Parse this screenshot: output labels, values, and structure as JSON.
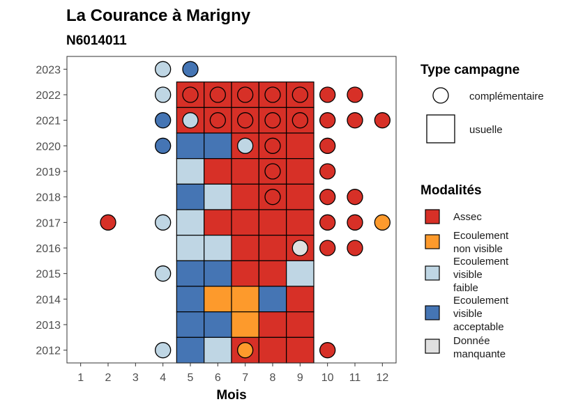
{
  "title": "La Courance à Marigny",
  "subtitle": "N6014011",
  "chart_data": {
    "type": "heatmap",
    "xlabel": "Mois",
    "ylabel": "",
    "x_ticks": [
      "1",
      "2",
      "3",
      "4",
      "5",
      "6",
      "7",
      "8",
      "9",
      "10",
      "11",
      "12"
    ],
    "y_ticks": [
      "2012",
      "2013",
      "2014",
      "2015",
      "2016",
      "2017",
      "2018",
      "2019",
      "2020",
      "2021",
      "2022",
      "2023"
    ],
    "xlim": [
      0.5,
      12.5
    ],
    "ylim": [
      2011.5,
      2023.5
    ],
    "colors": {
      "Assec": "#d73027",
      "Ecoulement non visible": "#fd9a2c",
      "Ecoulement visible faible": "#bfd6e4",
      "Ecoulement visible acceptable": "#4575b4",
      "Donnée manquante": "#e0e0e0"
    },
    "usuelle": [
      {
        "year": 2022,
        "month": 5,
        "mod": "Assec"
      },
      {
        "year": 2022,
        "month": 6,
        "mod": "Assec"
      },
      {
        "year": 2022,
        "month": 7,
        "mod": "Assec"
      },
      {
        "year": 2022,
        "month": 8,
        "mod": "Assec"
      },
      {
        "year": 2022,
        "month": 9,
        "mod": "Assec"
      },
      {
        "year": 2021,
        "month": 5,
        "mod": "Assec"
      },
      {
        "year": 2021,
        "month": 6,
        "mod": "Assec"
      },
      {
        "year": 2021,
        "month": 7,
        "mod": "Assec"
      },
      {
        "year": 2021,
        "month": 8,
        "mod": "Assec"
      },
      {
        "year": 2021,
        "month": 9,
        "mod": "Assec"
      },
      {
        "year": 2020,
        "month": 5,
        "mod": "Ecoulement visible acceptable"
      },
      {
        "year": 2020,
        "month": 6,
        "mod": "Ecoulement visible acceptable"
      },
      {
        "year": 2020,
        "month": 7,
        "mod": "Assec"
      },
      {
        "year": 2020,
        "month": 8,
        "mod": "Assec"
      },
      {
        "year": 2020,
        "month": 9,
        "mod": "Assec"
      },
      {
        "year": 2019,
        "month": 5,
        "mod": "Ecoulement visible faible"
      },
      {
        "year": 2019,
        "month": 6,
        "mod": "Assec"
      },
      {
        "year": 2019,
        "month": 7,
        "mod": "Assec"
      },
      {
        "year": 2019,
        "month": 8,
        "mod": "Assec"
      },
      {
        "year": 2019,
        "month": 9,
        "mod": "Assec"
      },
      {
        "year": 2018,
        "month": 5,
        "mod": "Ecoulement visible acceptable"
      },
      {
        "year": 2018,
        "month": 6,
        "mod": "Ecoulement visible faible"
      },
      {
        "year": 2018,
        "month": 7,
        "mod": "Assec"
      },
      {
        "year": 2018,
        "month": 8,
        "mod": "Assec"
      },
      {
        "year": 2018,
        "month": 9,
        "mod": "Assec"
      },
      {
        "year": 2017,
        "month": 5,
        "mod": "Ecoulement visible faible"
      },
      {
        "year": 2017,
        "month": 6,
        "mod": "Assec"
      },
      {
        "year": 2017,
        "month": 7,
        "mod": "Assec"
      },
      {
        "year": 2017,
        "month": 8,
        "mod": "Assec"
      },
      {
        "year": 2017,
        "month": 9,
        "mod": "Assec"
      },
      {
        "year": 2016,
        "month": 5,
        "mod": "Ecoulement visible faible"
      },
      {
        "year": 2016,
        "month": 6,
        "mod": "Ecoulement visible faible"
      },
      {
        "year": 2016,
        "month": 7,
        "mod": "Assec"
      },
      {
        "year": 2016,
        "month": 8,
        "mod": "Assec"
      },
      {
        "year": 2016,
        "month": 9,
        "mod": "Assec"
      },
      {
        "year": 2015,
        "month": 5,
        "mod": "Ecoulement visible acceptable"
      },
      {
        "year": 2015,
        "month": 6,
        "mod": "Ecoulement visible acceptable"
      },
      {
        "year": 2015,
        "month": 7,
        "mod": "Assec"
      },
      {
        "year": 2015,
        "month": 8,
        "mod": "Assec"
      },
      {
        "year": 2015,
        "month": 9,
        "mod": "Ecoulement visible faible"
      },
      {
        "year": 2014,
        "month": 5,
        "mod": "Ecoulement visible acceptable"
      },
      {
        "year": 2014,
        "month": 6,
        "mod": "Ecoulement non visible"
      },
      {
        "year": 2014,
        "month": 7,
        "mod": "Ecoulement non visible"
      },
      {
        "year": 2014,
        "month": 8,
        "mod": "Ecoulement visible acceptable"
      },
      {
        "year": 2014,
        "month": 9,
        "mod": "Assec"
      },
      {
        "year": 2013,
        "month": 5,
        "mod": "Ecoulement visible acceptable"
      },
      {
        "year": 2013,
        "month": 6,
        "mod": "Ecoulement visible acceptable"
      },
      {
        "year": 2013,
        "month": 7,
        "mod": "Ecoulement non visible"
      },
      {
        "year": 2013,
        "month": 8,
        "mod": "Assec"
      },
      {
        "year": 2013,
        "month": 9,
        "mod": "Assec"
      },
      {
        "year": 2012,
        "month": 5,
        "mod": "Ecoulement visible acceptable"
      },
      {
        "year": 2012,
        "month": 6,
        "mod": "Ecoulement visible faible"
      },
      {
        "year": 2012,
        "month": 7,
        "mod": "Assec"
      },
      {
        "year": 2012,
        "month": 8,
        "mod": "Assec"
      },
      {
        "year": 2012,
        "month": 9,
        "mod": "Assec"
      }
    ],
    "complementaire": [
      {
        "year": 2023,
        "month": 4,
        "mod": "Ecoulement visible faible"
      },
      {
        "year": 2023,
        "month": 5,
        "mod": "Ecoulement visible acceptable"
      },
      {
        "year": 2022,
        "month": 4,
        "mod": "Ecoulement visible faible"
      },
      {
        "year": 2022,
        "month": 5,
        "mod": "Assec"
      },
      {
        "year": 2022,
        "month": 6,
        "mod": "Assec"
      },
      {
        "year": 2022,
        "month": 7,
        "mod": "Assec"
      },
      {
        "year": 2022,
        "month": 8,
        "mod": "Assec"
      },
      {
        "year": 2022,
        "month": 9,
        "mod": "Assec"
      },
      {
        "year": 2022,
        "month": 10,
        "mod": "Assec"
      },
      {
        "year": 2022,
        "month": 11,
        "mod": "Assec"
      },
      {
        "year": 2021,
        "month": 4,
        "mod": "Ecoulement visible acceptable"
      },
      {
        "year": 2021,
        "month": 5,
        "mod": "Ecoulement visible faible"
      },
      {
        "year": 2021,
        "month": 6,
        "mod": "Assec"
      },
      {
        "year": 2021,
        "month": 7,
        "mod": "Assec"
      },
      {
        "year": 2021,
        "month": 8,
        "mod": "Assec"
      },
      {
        "year": 2021,
        "month": 9,
        "mod": "Assec"
      },
      {
        "year": 2021,
        "month": 10,
        "mod": "Assec"
      },
      {
        "year": 2021,
        "month": 11,
        "mod": "Assec"
      },
      {
        "year": 2021,
        "month": 12,
        "mod": "Assec"
      },
      {
        "year": 2020,
        "month": 4,
        "mod": "Ecoulement visible acceptable"
      },
      {
        "year": 2020,
        "month": 7,
        "mod": "Ecoulement visible faible"
      },
      {
        "year": 2020,
        "month": 8,
        "mod": "Assec"
      },
      {
        "year": 2020,
        "month": 10,
        "mod": "Assec"
      },
      {
        "year": 2019,
        "month": 8,
        "mod": "Assec"
      },
      {
        "year": 2019,
        "month": 10,
        "mod": "Assec"
      },
      {
        "year": 2018,
        "month": 8,
        "mod": "Assec"
      },
      {
        "year": 2018,
        "month": 10,
        "mod": "Assec"
      },
      {
        "year": 2018,
        "month": 11,
        "mod": "Assec"
      },
      {
        "year": 2017,
        "month": 2,
        "mod": "Assec"
      },
      {
        "year": 2017,
        "month": 4,
        "mod": "Ecoulement visible faible"
      },
      {
        "year": 2017,
        "month": 10,
        "mod": "Assec"
      },
      {
        "year": 2017,
        "month": 11,
        "mod": "Assec"
      },
      {
        "year": 2017,
        "month": 12,
        "mod": "Ecoulement non visible"
      },
      {
        "year": 2016,
        "month": 9,
        "mod": "Donnée manquante"
      },
      {
        "year": 2016,
        "month": 10,
        "mod": "Assec"
      },
      {
        "year": 2016,
        "month": 11,
        "mod": "Assec"
      },
      {
        "year": 2015,
        "month": 4,
        "mod": "Ecoulement visible faible"
      },
      {
        "year": 2012,
        "month": 4,
        "mod": "Ecoulement visible faible"
      },
      {
        "year": 2012,
        "month": 7,
        "mod": "Ecoulement non visible"
      },
      {
        "year": 2012,
        "month": 10,
        "mod": "Assec"
      }
    ]
  },
  "legend_type": {
    "title": "Type campagne",
    "items": [
      {
        "label": "complémentaire",
        "shape": "circle"
      },
      {
        "label": "usuelle",
        "shape": "square"
      }
    ]
  },
  "legend_mod": {
    "title": "Modalités",
    "items": [
      {
        "key": "Assec",
        "lines": [
          "Assec"
        ]
      },
      {
        "key": "Ecoulement non visible",
        "lines": [
          "Ecoulement",
          "non visible"
        ]
      },
      {
        "key": "Ecoulement visible faible",
        "lines": [
          "Ecoulement",
          "visible",
          "faible"
        ]
      },
      {
        "key": "Ecoulement visible acceptable",
        "lines": [
          "Ecoulement",
          "visible",
          "acceptable"
        ]
      },
      {
        "key": "Donnée manquante",
        "lines": [
          "Donnée",
          "manquante"
        ]
      }
    ]
  }
}
